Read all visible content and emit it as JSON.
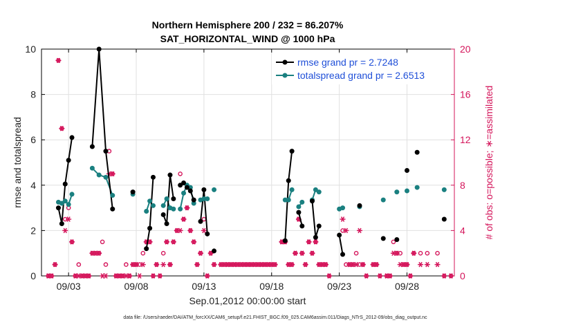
{
  "chart_data": {
    "type": "line",
    "title_line1": "Northern Hemisphere 200 / 232 = 86.207%",
    "title_line2": "SAT_HORIZONTAL_WIND @ 1000 hPa",
    "xlabel": "Sep.01,2012 00:00:00 start",
    "ylabel": "rmse and totalspread",
    "ylabel_right": "# of obs: o=possible; ∗=assimilated",
    "xlim": [
      1,
      31.5
    ],
    "ylim": [
      0,
      10
    ],
    "ylim_right": [
      0,
      20
    ],
    "x_ticks": [
      3,
      8,
      13,
      18,
      23,
      28
    ],
    "x_tick_labels": [
      "09/03",
      "09/08",
      "09/13",
      "09/18",
      "09/23",
      "09/28"
    ],
    "y_ticks": [
      0,
      2,
      4,
      6,
      8,
      10
    ],
    "y_tick_labels": [
      "0",
      "2",
      "4",
      "6",
      "8",
      "10"
    ],
    "y_ticks_right": [
      0,
      4,
      8,
      12,
      16,
      20
    ],
    "y_tick_labels_right": [
      "0",
      "4",
      "8",
      "12",
      "16",
      "20"
    ],
    "grid": true,
    "colors": {
      "rmse": "#000000",
      "spread": "#1a8080",
      "obs": "#d4145a",
      "legend_text": "#1f4fd8",
      "grid": "#e0e0e0"
    },
    "series": [
      {
        "name": "rmse",
        "legend": "rmse grand pr = 2.7248",
        "values": [
          [
            2.25,
            3.0
          ],
          [
            2.5,
            2.3
          ],
          [
            2.75,
            4.05
          ],
          [
            3.0,
            5.1
          ],
          [
            3.25,
            6.1
          ],
          [
            4.75,
            5.7
          ],
          [
            5.25,
            10.0
          ],
          [
            5.75,
            5.5
          ],
          [
            6.25,
            2.95
          ],
          [
            7.75,
            3.7
          ],
          [
            8.75,
            1.2
          ],
          [
            9.0,
            2.1
          ],
          [
            9.25,
            4.35
          ],
          [
            10.0,
            2.7
          ],
          [
            10.25,
            2.3
          ],
          [
            10.5,
            4.45
          ],
          [
            10.75,
            3.4
          ],
          [
            11.25,
            4.0
          ],
          [
            11.5,
            4.1
          ],
          [
            11.75,
            3.9
          ],
          [
            12.0,
            3.75
          ],
          [
            12.25,
            3.35
          ],
          [
            12.75,
            2.4
          ],
          [
            13.0,
            3.8
          ],
          [
            13.25,
            1.85
          ],
          [
            13.75,
            1.1
          ],
          [
            19.0,
            1.55
          ],
          [
            19.25,
            4.2
          ],
          [
            19.5,
            5.5
          ],
          [
            20.0,
            2.8
          ],
          [
            20.25,
            2.2
          ],
          [
            21.0,
            3.3
          ],
          [
            21.25,
            1.7
          ],
          [
            21.5,
            2.2
          ],
          [
            23.0,
            1.8
          ],
          [
            23.25,
            0.95
          ],
          [
            24.5,
            3.1
          ],
          [
            26.25,
            1.65
          ],
          [
            27.25,
            1.6
          ],
          [
            28.0,
            4.65
          ],
          [
            28.75,
            5.45
          ],
          [
            30.75,
            2.5
          ]
        ]
      },
      {
        "name": "totalspread",
        "legend": "totalspread grand pr = 2.6513",
        "values": [
          [
            2.25,
            3.25
          ],
          [
            2.5,
            3.2
          ],
          [
            2.75,
            3.3
          ],
          [
            3.0,
            3.15
          ],
          [
            3.25,
            3.6
          ],
          [
            4.75,
            4.75
          ],
          [
            5.25,
            4.45
          ],
          [
            5.75,
            4.35
          ],
          [
            6.25,
            3.55
          ],
          [
            7.75,
            3.6
          ],
          [
            8.75,
            2.85
          ],
          [
            9.0,
            3.3
          ],
          [
            9.25,
            3.1
          ],
          [
            10.0,
            3.1
          ],
          [
            10.25,
            3.4
          ],
          [
            10.5,
            3.0
          ],
          [
            10.75,
            2.95
          ],
          [
            11.25,
            2.95
          ],
          [
            11.5,
            3.65
          ],
          [
            11.75,
            4.0
          ],
          [
            12.0,
            3.9
          ],
          [
            12.25,
            3.2
          ],
          [
            12.75,
            3.35
          ],
          [
            13.0,
            3.4
          ],
          [
            13.25,
            3.4
          ],
          [
            13.75,
            3.8
          ],
          [
            19.0,
            3.35
          ],
          [
            19.25,
            3.35
          ],
          [
            19.5,
            3.8
          ],
          [
            20.0,
            3.05
          ],
          [
            20.25,
            3.25
          ],
          [
            21.0,
            3.35
          ],
          [
            21.25,
            3.8
          ],
          [
            21.5,
            3.7
          ],
          [
            23.0,
            2.95
          ],
          [
            23.25,
            3.0
          ],
          [
            24.5,
            3.05
          ],
          [
            26.25,
            3.35
          ],
          [
            27.25,
            3.7
          ],
          [
            28.0,
            3.75
          ],
          [
            28.75,
            3.9
          ],
          [
            30.75,
            3.8
          ]
        ]
      },
      {
        "name": "obs_possible",
        "values": [
          [
            1.5,
            0
          ],
          [
            1.75,
            0
          ],
          [
            2.0,
            1
          ],
          [
            2.25,
            19
          ],
          [
            2.5,
            13
          ],
          [
            2.75,
            5
          ],
          [
            3.0,
            6
          ],
          [
            3.25,
            3
          ],
          [
            3.5,
            0
          ],
          [
            3.75,
            1
          ],
          [
            4.0,
            0
          ],
          [
            4.25,
            0
          ],
          [
            4.5,
            0
          ],
          [
            4.75,
            2
          ],
          [
            5.0,
            2
          ],
          [
            5.25,
            2
          ],
          [
            5.5,
            3
          ],
          [
            5.75,
            1
          ],
          [
            6.0,
            11
          ],
          [
            6.25,
            9
          ],
          [
            6.5,
            0
          ],
          [
            6.75,
            0
          ],
          [
            7.0,
            0
          ],
          [
            7.25,
            1
          ],
          [
            7.5,
            0
          ],
          [
            7.75,
            1
          ],
          [
            8.0,
            1
          ],
          [
            8.25,
            1
          ],
          [
            8.5,
            2
          ],
          [
            8.75,
            3
          ],
          [
            9.0,
            3
          ],
          [
            9.25,
            0
          ],
          [
            9.5,
            1
          ],
          [
            9.75,
            0
          ],
          [
            10.0,
            2
          ],
          [
            10.25,
            3
          ],
          [
            10.5,
            1
          ],
          [
            10.75,
            3
          ],
          [
            11.0,
            4
          ],
          [
            11.25,
            9
          ],
          [
            11.5,
            5
          ],
          [
            11.75,
            6
          ],
          [
            12.0,
            4
          ],
          [
            12.25,
            3
          ],
          [
            12.5,
            1
          ],
          [
            12.75,
            2
          ],
          [
            13.0,
            5
          ],
          [
            13.25,
            0
          ],
          [
            13.5,
            2
          ],
          [
            13.75,
            1
          ],
          [
            14.25,
            1
          ],
          [
            14.5,
            1
          ],
          [
            14.75,
            1
          ],
          [
            15.0,
            1
          ],
          [
            15.25,
            1
          ],
          [
            15.5,
            1
          ],
          [
            15.75,
            1
          ],
          [
            16.0,
            1
          ],
          [
            16.25,
            1
          ],
          [
            16.5,
            1
          ],
          [
            16.75,
            1
          ],
          [
            17.0,
            1
          ],
          [
            17.25,
            1
          ],
          [
            17.5,
            1
          ],
          [
            17.75,
            1
          ],
          [
            18.0,
            1
          ],
          [
            18.25,
            1
          ],
          [
            18.75,
            3
          ],
          [
            19.0,
            3
          ],
          [
            19.25,
            1
          ],
          [
            19.5,
            1
          ],
          [
            19.75,
            2
          ],
          [
            20.0,
            5
          ],
          [
            20.25,
            2
          ],
          [
            20.5,
            1
          ],
          [
            20.75,
            3
          ],
          [
            21.0,
            2
          ],
          [
            21.25,
            3
          ],
          [
            21.5,
            1
          ],
          [
            21.75,
            1
          ],
          [
            22.0,
            1
          ],
          [
            22.25,
            0
          ],
          [
            23.25,
            4
          ],
          [
            23.5,
            1
          ],
          [
            23.75,
            1
          ],
          [
            24.0,
            1
          ],
          [
            24.25,
            2
          ],
          [
            24.5,
            1
          ],
          [
            24.75,
            1
          ],
          [
            25.0,
            0
          ],
          [
            25.5,
            1
          ],
          [
            25.75,
            1
          ],
          [
            26.0,
            0
          ],
          [
            26.5,
            0
          ],
          [
            26.75,
            0
          ],
          [
            27.0,
            3
          ],
          [
            27.25,
            2
          ],
          [
            27.5,
            2
          ],
          [
            27.75,
            1
          ],
          [
            28.0,
            1
          ],
          [
            28.25,
            0
          ],
          [
            28.5,
            2
          ],
          [
            29.0,
            2
          ],
          [
            29.5,
            2
          ],
          [
            30.25,
            2
          ],
          [
            30.75,
            0
          ],
          [
            31.25,
            0
          ]
        ]
      },
      {
        "name": "obs_assimilated",
        "values": [
          [
            1.5,
            0
          ],
          [
            1.75,
            0
          ],
          [
            2.0,
            1
          ],
          [
            2.25,
            19
          ],
          [
            2.5,
            13
          ],
          [
            2.75,
            4
          ],
          [
            3.0,
            5
          ],
          [
            3.25,
            3
          ],
          [
            3.5,
            0
          ],
          [
            3.75,
            0
          ],
          [
            4.0,
            0
          ],
          [
            4.25,
            0
          ],
          [
            4.5,
            0
          ],
          [
            4.75,
            2
          ],
          [
            5.0,
            2
          ],
          [
            5.25,
            2
          ],
          [
            5.5,
            0
          ],
          [
            5.75,
            0
          ],
          [
            6.0,
            9
          ],
          [
            6.25,
            9
          ],
          [
            6.5,
            0
          ],
          [
            6.75,
            0
          ],
          [
            7.0,
            0
          ],
          [
            7.25,
            0
          ],
          [
            7.5,
            0
          ],
          [
            7.75,
            1
          ],
          [
            8.0,
            1
          ],
          [
            8.25,
            0
          ],
          [
            8.5,
            1
          ],
          [
            8.75,
            3
          ],
          [
            9.0,
            3
          ],
          [
            9.25,
            0
          ],
          [
            9.5,
            1
          ],
          [
            9.75,
            0
          ],
          [
            10.0,
            1
          ],
          [
            10.25,
            3
          ],
          [
            10.5,
            1
          ],
          [
            10.75,
            3
          ],
          [
            11.0,
            4
          ],
          [
            11.25,
            4
          ],
          [
            11.5,
            5
          ],
          [
            11.75,
            6
          ],
          [
            12.0,
            4
          ],
          [
            12.25,
            3
          ],
          [
            12.5,
            1
          ],
          [
            12.75,
            2
          ],
          [
            13.0,
            4
          ],
          [
            13.25,
            0
          ],
          [
            13.5,
            2
          ],
          [
            13.75,
            1
          ],
          [
            14.25,
            1
          ],
          [
            14.5,
            1
          ],
          [
            14.75,
            1
          ],
          [
            15.0,
            1
          ],
          [
            15.25,
            1
          ],
          [
            15.5,
            1
          ],
          [
            15.75,
            1
          ],
          [
            16.0,
            1
          ],
          [
            16.25,
            1
          ],
          [
            16.5,
            1
          ],
          [
            16.75,
            1
          ],
          [
            17.0,
            1
          ],
          [
            17.25,
            1
          ],
          [
            17.5,
            1
          ],
          [
            17.75,
            1
          ],
          [
            18.0,
            1
          ],
          [
            18.25,
            1
          ],
          [
            18.75,
            3
          ],
          [
            19.0,
            3
          ],
          [
            19.25,
            1
          ],
          [
            19.5,
            1
          ],
          [
            19.75,
            2
          ],
          [
            20.0,
            5
          ],
          [
            20.25,
            2
          ],
          [
            20.5,
            1
          ],
          [
            20.75,
            3
          ],
          [
            21.0,
            2
          ],
          [
            21.25,
            3
          ],
          [
            21.5,
            1
          ],
          [
            21.75,
            1
          ],
          [
            22.0,
            1
          ],
          [
            22.25,
            0
          ],
          [
            23.25,
            5
          ],
          [
            23.5,
            4
          ],
          [
            23.75,
            1
          ],
          [
            24.0,
            1
          ],
          [
            24.25,
            1
          ],
          [
            24.5,
            4
          ],
          [
            24.75,
            1
          ],
          [
            25.0,
            0
          ],
          [
            25.5,
            1
          ],
          [
            25.75,
            1
          ],
          [
            26.0,
            0
          ],
          [
            26.5,
            0
          ],
          [
            26.75,
            0
          ],
          [
            27.0,
            2
          ],
          [
            27.25,
            2
          ],
          [
            27.5,
            1
          ],
          [
            27.75,
            1
          ],
          [
            28.0,
            1
          ],
          [
            28.25,
            0
          ],
          [
            28.5,
            2
          ],
          [
            29.0,
            1
          ],
          [
            29.5,
            1
          ],
          [
            30.25,
            1
          ],
          [
            30.75,
            0
          ],
          [
            31.25,
            0
          ]
        ]
      }
    ],
    "segments": [
      [
        2.25,
        3.25
      ],
      [
        4.75,
        6.25
      ],
      [
        7.75,
        7.75
      ],
      [
        8.75,
        9.25
      ],
      [
        10.0,
        10.75
      ],
      [
        11.25,
        12.25
      ],
      [
        12.75,
        13.25
      ],
      [
        13.75,
        13.75
      ],
      [
        19.0,
        19.5
      ],
      [
        20.0,
        20.25
      ],
      [
        21.0,
        21.5
      ],
      [
        23.0,
        23.25
      ],
      [
        24.5,
        24.5
      ],
      [
        26.25,
        26.25
      ],
      [
        27.25,
        27.25
      ],
      [
        28.0,
        28.0
      ],
      [
        28.75,
        28.75
      ],
      [
        30.75,
        30.75
      ]
    ],
    "footer": "data file: /Users/raeder/DAI/ATM_forcXX/CAM6_setup/f.e21.FHIST_BGC.f09_025.CAM6assim.011/Diags_NTrS_2012-09/obs_diag_output.nc"
  }
}
